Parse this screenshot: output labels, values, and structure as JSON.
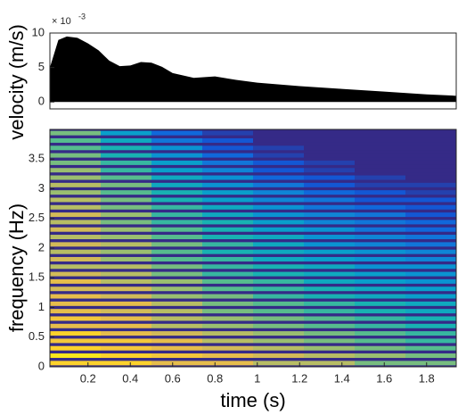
{
  "chart_data": [
    {
      "type": "area",
      "y_label": "velocity (m/s)",
      "y_multiplier_base": "× 10",
      "y_multiplier_exponent": "-3",
      "x": [
        0.02,
        0.06,
        0.1,
        0.15,
        0.2,
        0.25,
        0.3,
        0.35,
        0.4,
        0.45,
        0.5,
        0.55,
        0.6,
        0.7,
        0.8,
        0.9,
        1.0,
        1.2,
        1.4,
        1.6,
        1.8,
        1.94
      ],
      "values": [
        5,
        9,
        9.5,
        9.3,
        8.5,
        7.5,
        6,
        5.2,
        5.3,
        5.8,
        5.7,
        5.1,
        4.2,
        3.5,
        3.7,
        3.2,
        2.8,
        2.3,
        1.9,
        1.5,
        1.1,
        0.9
      ],
      "color": "#000000",
      "xlim": [
        0.02,
        1.94
      ],
      "ylim": [
        -1,
        10
      ],
      "yticks": [
        0,
        5,
        10
      ]
    },
    {
      "type": "heatmap",
      "x_label": "time (s)",
      "y_label": "frequency (Hz)",
      "colormap": "parula",
      "x": [
        0.14,
        0.38,
        0.62,
        0.86,
        1.1,
        1.34,
        1.58,
        1.82
      ],
      "y": [
        0.0625,
        0.1875,
        0.3125,
        0.4375,
        0.5625,
        0.6875,
        0.8125,
        0.9375,
        1.0625,
        1.1875,
        1.3125,
        1.4375,
        1.5625,
        1.6875,
        1.8125,
        1.9375,
        2.0625,
        2.1875,
        2.3125,
        2.4375,
        2.5625,
        2.6875,
        2.8125,
        2.9375,
        3.0625,
        3.1875,
        3.3125,
        3.4375,
        3.5625,
        3.6875,
        3.8125,
        3.9375
      ],
      "z": [
        [
          0.9,
          0.9,
          0.8,
          0.8,
          0.7,
          0.7,
          0.6,
          0.6
        ],
        [
          0.95,
          0.9,
          0.85,
          0.8,
          0.75,
          0.7,
          0.65,
          0.6
        ],
        [
          0.9,
          0.85,
          0.8,
          0.75,
          0.7,
          0.65,
          0.6,
          0.55
        ],
        [
          0.85,
          0.85,
          0.8,
          0.7,
          0.65,
          0.6,
          0.55,
          0.5
        ],
        [
          0.9,
          0.8,
          0.75,
          0.7,
          0.65,
          0.6,
          0.55,
          0.5
        ],
        [
          0.8,
          0.8,
          0.7,
          0.65,
          0.6,
          0.55,
          0.5,
          0.45
        ],
        [
          0.85,
          0.8,
          0.7,
          0.65,
          0.6,
          0.55,
          0.5,
          0.45
        ],
        [
          0.8,
          0.75,
          0.7,
          0.6,
          0.55,
          0.5,
          0.45,
          0.4
        ],
        [
          0.8,
          0.8,
          0.7,
          0.6,
          0.55,
          0.5,
          0.45,
          0.4
        ],
        [
          0.8,
          0.75,
          0.65,
          0.6,
          0.5,
          0.45,
          0.4,
          0.35
        ],
        [
          0.75,
          0.75,
          0.65,
          0.55,
          0.5,
          0.45,
          0.4,
          0.35
        ],
        [
          0.8,
          0.7,
          0.65,
          0.55,
          0.5,
          0.4,
          0.35,
          0.3
        ],
        [
          0.75,
          0.7,
          0.6,
          0.5,
          0.45,
          0.4,
          0.35,
          0.3
        ],
        [
          0.7,
          0.7,
          0.6,
          0.5,
          0.45,
          0.4,
          0.3,
          0.3
        ],
        [
          0.75,
          0.65,
          0.55,
          0.5,
          0.4,
          0.35,
          0.3,
          0.25
        ],
        [
          0.7,
          0.65,
          0.55,
          0.45,
          0.4,
          0.35,
          0.3,
          0.25
        ],
        [
          0.75,
          0.7,
          0.6,
          0.5,
          0.4,
          0.3,
          0.25,
          0.2
        ],
        [
          0.7,
          0.65,
          0.55,
          0.45,
          0.4,
          0.3,
          0.25,
          0.2
        ],
        [
          0.75,
          0.65,
          0.55,
          0.45,
          0.35,
          0.3,
          0.2,
          0.15
        ],
        [
          0.7,
          0.6,
          0.5,
          0.45,
          0.35,
          0.25,
          0.2,
          0.15
        ],
        [
          0.75,
          0.65,
          0.5,
          0.4,
          0.3,
          0.25,
          0.2,
          0.1
        ],
        [
          0.7,
          0.6,
          0.5,
          0.4,
          0.3,
          0.2,
          0.15,
          0.1
        ],
        [
          0.7,
          0.6,
          0.45,
          0.35,
          0.25,
          0.2,
          0.1,
          0.1
        ],
        [
          0.65,
          0.55,
          0.45,
          0.35,
          0.25,
          0.15,
          0.1,
          0.05
        ],
        [
          0.7,
          0.6,
          0.4,
          0.3,
          0.2,
          0.1,
          0.05,
          0.05
        ],
        [
          0.65,
          0.55,
          0.4,
          0.3,
          0.15,
          0.1,
          0.05,
          0
        ],
        [
          0.65,
          0.5,
          0.35,
          0.25,
          0.1,
          0.05,
          0,
          0
        ],
        [
          0.6,
          0.5,
          0.35,
          0.2,
          0.1,
          0.05,
          0,
          0
        ],
        [
          0.6,
          0.45,
          0.3,
          0.15,
          0.05,
          0,
          0,
          0
        ],
        [
          0.55,
          0.45,
          0.3,
          0.1,
          0.05,
          0,
          0,
          0
        ],
        [
          0.55,
          0.4,
          0.2,
          0.1,
          0,
          0,
          0,
          0
        ],
        [
          0.6,
          0.35,
          0.15,
          0.05,
          0,
          0,
          0,
          0
        ]
      ],
      "xlim": [
        0.02,
        1.94
      ],
      "xticks": [
        0.2,
        0.4,
        0.6,
        0.8,
        1,
        1.2,
        1.4,
        1.6,
        1.8
      ],
      "ylim": [
        0,
        4
      ],
      "yticks": [
        0,
        0.5,
        1,
        1.5,
        2,
        2.5,
        3,
        3.5
      ]
    }
  ]
}
